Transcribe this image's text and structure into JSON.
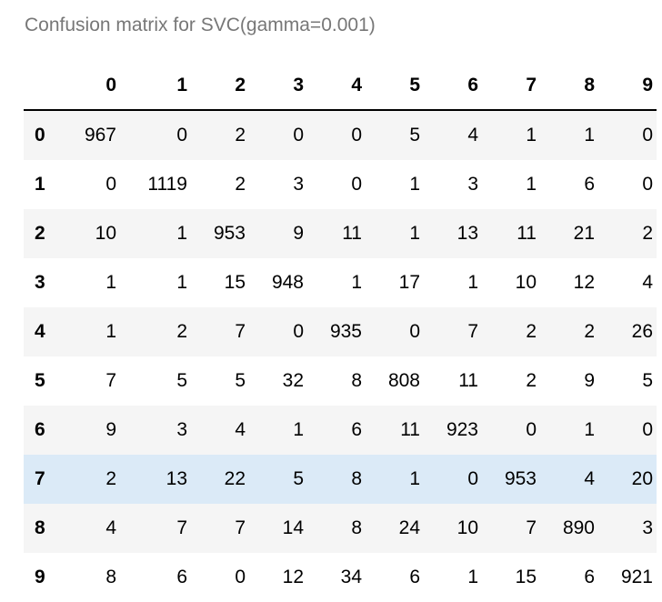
{
  "caption": "Confusion matrix for SVC(gamma=0.001)",
  "columns": [
    "0",
    "1",
    "2",
    "3",
    "4",
    "5",
    "6",
    "7",
    "8",
    "9"
  ],
  "highlighted_row": "7",
  "rows": [
    {
      "label": "0",
      "values": [
        967,
        0,
        2,
        0,
        0,
        5,
        4,
        1,
        1,
        0
      ]
    },
    {
      "label": "1",
      "values": [
        0,
        1119,
        2,
        3,
        0,
        1,
        3,
        1,
        6,
        0
      ]
    },
    {
      "label": "2",
      "values": [
        10,
        1,
        953,
        9,
        11,
        1,
        13,
        11,
        21,
        2
      ]
    },
    {
      "label": "3",
      "values": [
        1,
        1,
        15,
        948,
        1,
        17,
        1,
        10,
        12,
        4
      ]
    },
    {
      "label": "4",
      "values": [
        1,
        2,
        7,
        0,
        935,
        0,
        7,
        2,
        2,
        26
      ]
    },
    {
      "label": "5",
      "values": [
        7,
        5,
        5,
        32,
        8,
        808,
        11,
        2,
        9,
        5
      ]
    },
    {
      "label": "6",
      "values": [
        9,
        3,
        4,
        1,
        6,
        11,
        923,
        0,
        1,
        0
      ]
    },
    {
      "label": "7",
      "values": [
        2,
        13,
        22,
        5,
        8,
        1,
        0,
        953,
        4,
        20
      ]
    },
    {
      "label": "8",
      "values": [
        4,
        7,
        7,
        14,
        8,
        24,
        10,
        7,
        890,
        3
      ]
    },
    {
      "label": "9",
      "values": [
        8,
        6,
        0,
        12,
        34,
        6,
        1,
        15,
        6,
        921
      ]
    }
  ]
}
